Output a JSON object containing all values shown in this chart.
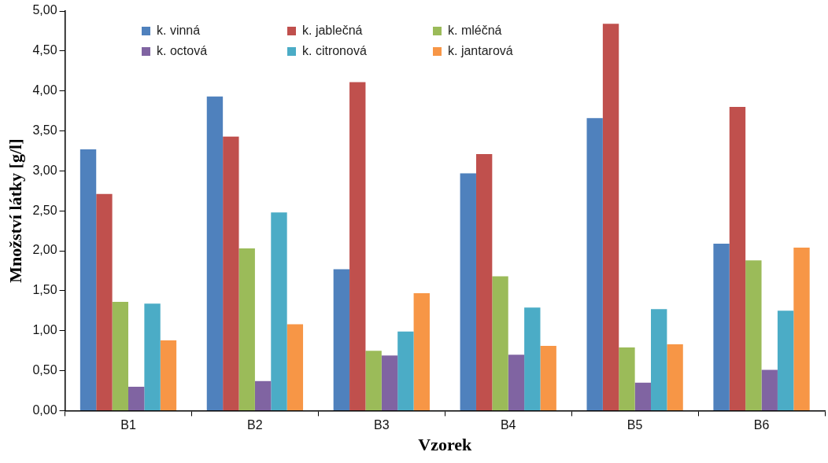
{
  "chart_data": {
    "type": "bar",
    "xlabel": "Vzorek",
    "ylabel": "Množství látky [g/l]",
    "categories": [
      "B1",
      "B2",
      "B3",
      "B4",
      "B5",
      "B6"
    ],
    "series": [
      {
        "name": "k. vinná",
        "color": "#4f81bd",
        "values": [
          3.27,
          3.93,
          1.77,
          2.97,
          3.66,
          2.09
        ]
      },
      {
        "name": "k. jablečná",
        "color": "#c0504d",
        "values": [
          2.71,
          3.43,
          4.11,
          3.21,
          4.84,
          3.8
        ]
      },
      {
        "name": "k. mléčná",
        "color": "#9bbb59",
        "values": [
          1.36,
          2.03,
          0.75,
          1.68,
          0.79,
          1.88
        ]
      },
      {
        "name": "k. octová",
        "color": "#8064a2",
        "values": [
          0.3,
          0.37,
          0.69,
          0.7,
          0.35,
          0.51
        ]
      },
      {
        "name": "k. citronová",
        "color": "#4bacc6",
        "values": [
          1.34,
          2.48,
          0.99,
          1.29,
          1.27,
          1.25
        ]
      },
      {
        "name": "k. jantarová",
        "color": "#f79646",
        "values": [
          0.88,
          1.08,
          1.47,
          0.81,
          0.83,
          2.04
        ]
      }
    ],
    "ylim": [
      0,
      5
    ],
    "yticks": [
      {
        "value": 0,
        "label": "0,00"
      },
      {
        "value": 0.5,
        "label": "0,50"
      },
      {
        "value": 1,
        "label": "1,00"
      },
      {
        "value": 1.5,
        "label": "1,50"
      },
      {
        "value": 2,
        "label": "2,00"
      },
      {
        "value": 2.5,
        "label": "2,50"
      },
      {
        "value": 3,
        "label": "3,00"
      },
      {
        "value": 3.5,
        "label": "3,50"
      },
      {
        "value": 4,
        "label": "4,00"
      },
      {
        "value": 4.5,
        "label": "4,50"
      },
      {
        "value": 5,
        "label": "5,00"
      }
    ],
    "grid": false,
    "legend": "top"
  }
}
